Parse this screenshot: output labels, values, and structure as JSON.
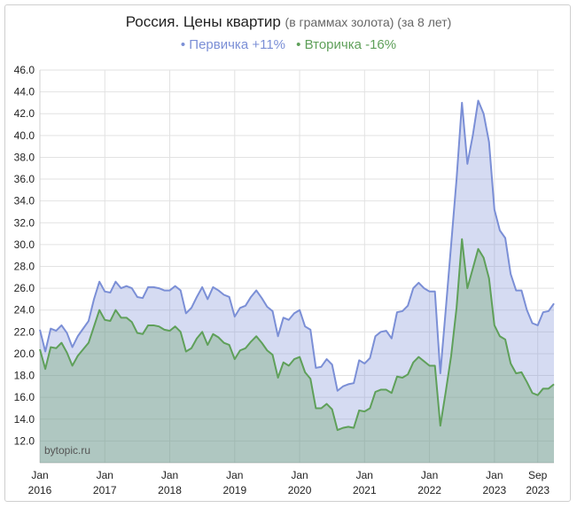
{
  "chart_data": {
    "type": "area",
    "title": "Россия. Цены квартир",
    "subtitle": "(в граммах золота) (за 8 лет)",
    "legend": [
      {
        "marker": "•",
        "text": "Первичка +11%",
        "color": "#7b8fd6"
      },
      {
        "marker": "•",
        "text": "Вторичка -16%",
        "color": "#5fa05a"
      }
    ],
    "watermark": "bytopic.ru",
    "ylim": [
      10.0,
      46.0
    ],
    "y_ticks": [
      "46.0",
      "44.0",
      "42.0",
      "40.0",
      "38.0",
      "36.0",
      "34.0",
      "32.0",
      "30.0",
      "28.0",
      "26.0",
      "24.0",
      "22.0",
      "20.0",
      "18.0",
      "16.0",
      "14.0",
      "12.0"
    ],
    "y_tick_values": [
      46,
      44,
      42,
      40,
      38,
      36,
      34,
      32,
      30,
      28,
      26,
      24,
      22,
      20,
      18,
      16,
      14,
      12
    ],
    "x_tick_labels": [
      {
        "line1": "Jan",
        "line2": "2016",
        "month": 0
      },
      {
        "line1": "Jan",
        "line2": "2017",
        "month": 12
      },
      {
        "line1": "Jan",
        "line2": "2018",
        "month": 24
      },
      {
        "line1": "Jan",
        "line2": "2019",
        "month": 36
      },
      {
        "line1": "Jan",
        "line2": "2020",
        "month": 48
      },
      {
        "line1": "Jan",
        "line2": "2021",
        "month": 60
      },
      {
        "line1": "Jan",
        "line2": "2022",
        "month": 72
      },
      {
        "line1": "Jan",
        "line2": "2023",
        "month": 84
      },
      {
        "line1": "Sep",
        "line2": "2023",
        "month": 92
      }
    ],
    "x_start": "2016-01",
    "x_end": "2023-10",
    "grid": true,
    "series": [
      {
        "name": "Первичка +11%",
        "color": "#7b8fd6",
        "fill": "rgba(123,143,214,0.32)",
        "values": [
          22.2,
          20.2,
          22.3,
          22.1,
          22.6,
          21.9,
          20.6,
          21.6,
          22.3,
          23.0,
          25.0,
          26.6,
          25.7,
          25.6,
          26.6,
          26.0,
          26.2,
          26.0,
          25.2,
          25.1,
          26.1,
          26.1,
          26.0,
          25.8,
          25.8,
          26.2,
          25.8,
          23.7,
          24.2,
          25.2,
          26.1,
          25.0,
          26.1,
          25.8,
          25.4,
          25.2,
          23.4,
          24.2,
          24.4,
          25.2,
          25.8,
          25.1,
          24.3,
          23.9,
          21.6,
          23.3,
          23.1,
          23.7,
          24.0,
          22.5,
          22.2,
          18.7,
          18.8,
          19.5,
          19.0,
          16.6,
          17.0,
          17.2,
          17.3,
          19.4,
          19.1,
          19.6,
          21.6,
          22.0,
          22.1,
          21.4,
          23.8,
          23.9,
          24.4,
          26.0,
          26.5,
          26.0,
          25.7,
          25.7,
          18.2,
          24.0,
          30.0,
          36.0,
          43.0,
          37.4,
          40.0,
          43.2,
          42.0,
          39.4,
          33.2,
          31.3,
          30.6,
          27.3,
          25.8,
          25.8,
          24.0,
          22.8,
          22.6,
          23.8,
          23.9,
          24.6
        ]
      },
      {
        "name": "Вторичка -16%",
        "color": "#5fa05a",
        "fill": "rgba(95,160,90,0.32)",
        "values": [
          20.4,
          18.6,
          20.6,
          20.5,
          21.0,
          20.1,
          18.9,
          19.8,
          20.4,
          21.0,
          22.5,
          24.0,
          23.1,
          23.0,
          24.0,
          23.3,
          23.3,
          22.9,
          21.9,
          21.8,
          22.6,
          22.6,
          22.5,
          22.2,
          22.1,
          22.5,
          22.0,
          20.2,
          20.5,
          21.4,
          22.0,
          20.8,
          21.8,
          21.5,
          21.0,
          20.8,
          19.5,
          20.3,
          20.5,
          21.1,
          21.6,
          21.0,
          20.3,
          19.9,
          17.8,
          19.2,
          18.9,
          19.5,
          19.7,
          18.3,
          17.7,
          15.0,
          15.0,
          15.4,
          14.9,
          13.0,
          13.2,
          13.3,
          13.2,
          14.8,
          14.7,
          15.0,
          16.5,
          16.7,
          16.7,
          16.4,
          17.9,
          17.8,
          18.1,
          19.2,
          19.7,
          19.3,
          18.9,
          18.9,
          13.4,
          16.5,
          19.8,
          24.2,
          30.5,
          26.0,
          27.8,
          29.6,
          28.8,
          26.9,
          22.6,
          21.6,
          21.3,
          19.1,
          18.2,
          18.3,
          17.4,
          16.4,
          16.2,
          16.8,
          16.8,
          17.2
        ]
      }
    ]
  }
}
